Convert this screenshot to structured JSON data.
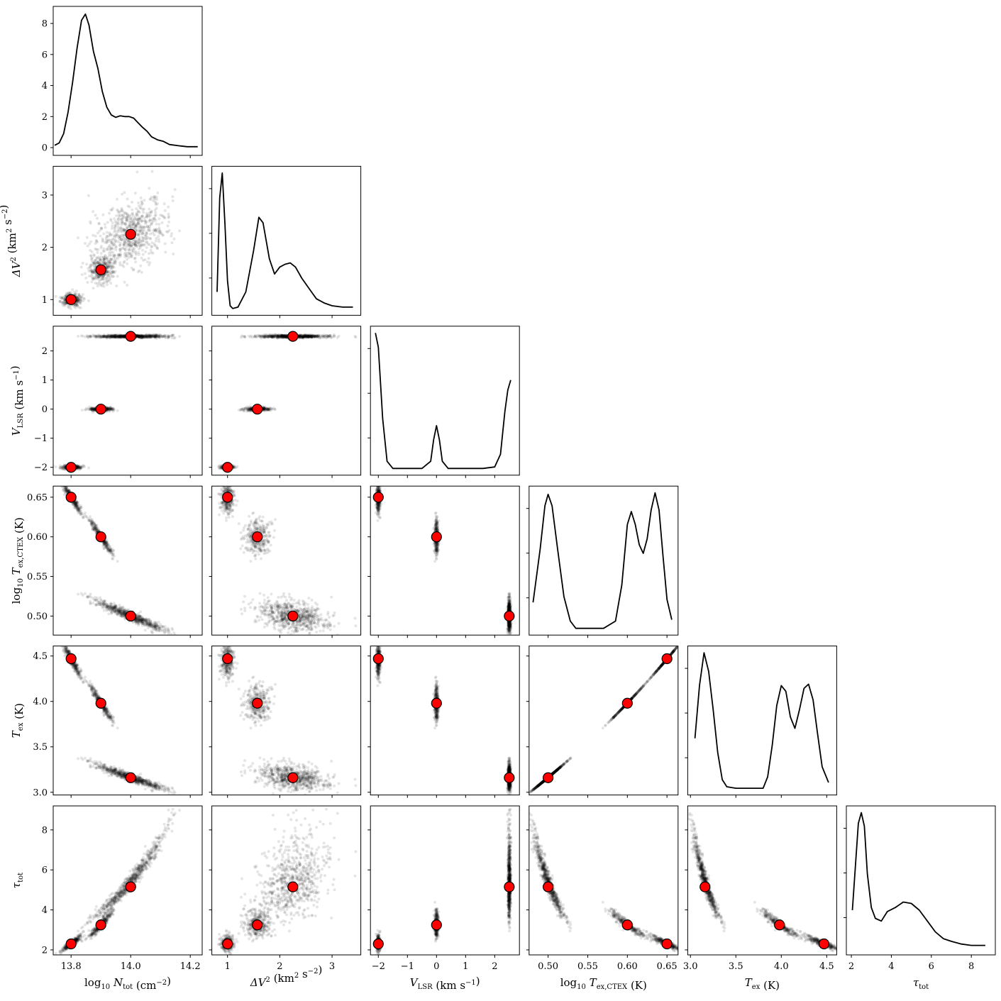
{
  "chart_data": {
    "type": "corner",
    "variables": [
      {
        "key": "logN",
        "label_base": "log",
        "label_sub": "10",
        "label_main": "N",
        "label_main_sub": "tot",
        "label_unit": "(cm",
        "label_unit_sup": "−2",
        "label_unit_end": ")",
        "ticks": [
          13.8,
          14.0,
          14.2
        ],
        "tick_labels": [
          "13.8",
          "14.0",
          "14.2"
        ],
        "range": [
          13.74,
          14.24
        ]
      },
      {
        "key": "dV2",
        "label_main": "ΔV",
        "label_main_sup": "2",
        "label_unit": "(km",
        "label_unit_sup": "2",
        "label_unit_mid": " s",
        "label_unit_sup2": "−2",
        "label_unit_end": ")",
        "ticks": [
          1,
          2,
          3
        ],
        "tick_labels": [
          "1",
          "2",
          "3"
        ],
        "range": [
          0.7,
          3.55
        ]
      },
      {
        "key": "vlsr",
        "label_main": "V",
        "label_main_sub": "LSR",
        "label_unit": "(km s",
        "label_unit_sup": "−1",
        "label_unit_end": ")",
        "ticks": [
          -2,
          -1,
          0,
          1,
          2
        ],
        "tick_labels": [
          "−2",
          "−1",
          "0",
          "1",
          "2"
        ],
        "range": [
          -2.27,
          2.85
        ]
      },
      {
        "key": "logTex",
        "label_base": "log",
        "label_sub": "10",
        "label_main": "T",
        "label_main_sub": "ex,CTEX",
        "label_unit": "(K)",
        "ticks": [
          0.5,
          0.55,
          0.6,
          0.65
        ],
        "tick_labels": [
          "0.50",
          "0.55",
          "0.60",
          "0.65"
        ],
        "range": [
          0.476,
          0.664
        ]
      },
      {
        "key": "Tex",
        "label_main": "T",
        "label_main_sub": "ex",
        "label_unit": "(K)",
        "ticks": [
          3.0,
          3.5,
          4.0,
          4.5
        ],
        "tick_labels": [
          "3.0",
          "3.5",
          "4.0",
          "4.5"
        ],
        "range": [
          2.97,
          4.61
        ]
      },
      {
        "key": "tau",
        "label_main": "τ",
        "label_main_sub": "tot",
        "label_unit": "",
        "ticks": [
          2,
          4,
          6,
          8
        ],
        "tick_labels": [
          "2",
          "4",
          "6",
          "8"
        ],
        "range": [
          1.75,
          9.2
        ]
      }
    ],
    "truths": [
      {
        "logN": 13.8,
        "dV2": 1.0,
        "vlsr": -2.0,
        "logTex": 0.65,
        "Tex": 4.47,
        "tau": 2.3
      },
      {
        "logN": 13.9,
        "dV2": 1.57,
        "vlsr": 0.0,
        "logTex": 0.6,
        "Tex": 3.98,
        "tau": 3.25
      },
      {
        "logN": 14.0,
        "dV2": 2.25,
        "vlsr": 2.5,
        "logTex": 0.5,
        "Tex": 3.16,
        "tau": 5.15
      }
    ],
    "diag_ticks": {
      "logN": {
        "ticks": [
          0,
          2,
          4,
          6,
          8
        ],
        "tick_labels": [
          "0",
          "2",
          "4",
          "6",
          "8"
        ],
        "range": [
          -0.5,
          9.1
        ]
      }
    },
    "marginal_curves": {
      "logN": [
        [
          13.745,
          0.15
        ],
        [
          13.76,
          0.3
        ],
        [
          13.775,
          0.9
        ],
        [
          13.79,
          2.3
        ],
        [
          13.805,
          4.2
        ],
        [
          13.82,
          6.4
        ],
        [
          13.835,
          8.2
        ],
        [
          13.848,
          8.6
        ],
        [
          13.86,
          7.9
        ],
        [
          13.875,
          6.2
        ],
        [
          13.89,
          5.1
        ],
        [
          13.905,
          3.6
        ],
        [
          13.92,
          2.6
        ],
        [
          13.935,
          2.1
        ],
        [
          13.95,
          1.95
        ],
        [
          13.965,
          2.05
        ],
        [
          13.98,
          2.0
        ],
        [
          13.995,
          2.0
        ],
        [
          14.01,
          1.9
        ],
        [
          14.025,
          1.6
        ],
        [
          14.04,
          1.3
        ],
        [
          14.055,
          1.05
        ],
        [
          14.07,
          0.7
        ],
        [
          14.09,
          0.5
        ],
        [
          14.11,
          0.4
        ],
        [
          14.13,
          0.2
        ],
        [
          14.16,
          0.12
        ],
        [
          14.19,
          0.06
        ],
        [
          14.225,
          0.06
        ]
      ],
      "dV2": [
        [
          0.8,
          0.12
        ],
        [
          0.85,
          0.8
        ],
        [
          0.9,
          0.98
        ],
        [
          0.95,
          0.62
        ],
        [
          1.0,
          0.2
        ],
        [
          1.05,
          0.02
        ],
        [
          1.1,
          0.0
        ],
        [
          1.2,
          0.01
        ],
        [
          1.35,
          0.12
        ],
        [
          1.5,
          0.42
        ],
        [
          1.6,
          0.66
        ],
        [
          1.68,
          0.62
        ],
        [
          1.8,
          0.36
        ],
        [
          1.9,
          0.25
        ],
        [
          2.0,
          0.3
        ],
        [
          2.1,
          0.32
        ],
        [
          2.2,
          0.33
        ],
        [
          2.3,
          0.3
        ],
        [
          2.42,
          0.22
        ],
        [
          2.55,
          0.15
        ],
        [
          2.7,
          0.07
        ],
        [
          2.85,
          0.04
        ],
        [
          3.0,
          0.02
        ],
        [
          3.2,
          0.01
        ],
        [
          3.4,
          0.01
        ]
      ],
      "vlsr": [
        [
          -2.1,
          0.95
        ],
        [
          -2.0,
          0.85
        ],
        [
          -1.85,
          0.35
        ],
        [
          -1.7,
          0.05
        ],
        [
          -1.5,
          0.0
        ],
        [
          -1.0,
          0.0
        ],
        [
          -0.5,
          0.0
        ],
        [
          -0.2,
          0.05
        ],
        [
          -0.1,
          0.2
        ],
        [
          0.0,
          0.3
        ],
        [
          0.1,
          0.2
        ],
        [
          0.2,
          0.05
        ],
        [
          0.4,
          0.0
        ],
        [
          1.0,
          0.0
        ],
        [
          1.6,
          0.0
        ],
        [
          2.0,
          0.01
        ],
        [
          2.2,
          0.1
        ],
        [
          2.35,
          0.4
        ],
        [
          2.45,
          0.55
        ],
        [
          2.55,
          0.62
        ]
      ],
      "logTex": [
        [
          0.481,
          0.18
        ],
        [
          0.49,
          0.55
        ],
        [
          0.496,
          0.85
        ],
        [
          0.5,
          0.93
        ],
        [
          0.505,
          0.85
        ],
        [
          0.512,
          0.55
        ],
        [
          0.52,
          0.22
        ],
        [
          0.528,
          0.05
        ],
        [
          0.535,
          0.0
        ],
        [
          0.57,
          0.0
        ],
        [
          0.585,
          0.05
        ],
        [
          0.593,
          0.3
        ],
        [
          0.6,
          0.72
        ],
        [
          0.605,
          0.81
        ],
        [
          0.61,
          0.72
        ],
        [
          0.615,
          0.58
        ],
        [
          0.62,
          0.52
        ],
        [
          0.625,
          0.62
        ],
        [
          0.63,
          0.82
        ],
        [
          0.635,
          0.94
        ],
        [
          0.64,
          0.82
        ],
        [
          0.645,
          0.5
        ],
        [
          0.65,
          0.2
        ],
        [
          0.656,
          0.06
        ]
      ],
      "Tex": [
        [
          3.05,
          0.35
        ],
        [
          3.1,
          0.72
        ],
        [
          3.15,
          0.95
        ],
        [
          3.2,
          0.82
        ],
        [
          3.25,
          0.55
        ],
        [
          3.3,
          0.25
        ],
        [
          3.35,
          0.06
        ],
        [
          3.4,
          0.01
        ],
        [
          3.5,
          0.0
        ],
        [
          3.8,
          0.0
        ],
        [
          3.85,
          0.08
        ],
        [
          3.9,
          0.3
        ],
        [
          3.95,
          0.58
        ],
        [
          4.0,
          0.72
        ],
        [
          4.05,
          0.68
        ],
        [
          4.1,
          0.5
        ],
        [
          4.15,
          0.42
        ],
        [
          4.2,
          0.55
        ],
        [
          4.25,
          0.7
        ],
        [
          4.3,
          0.73
        ],
        [
          4.35,
          0.62
        ],
        [
          4.4,
          0.38
        ],
        [
          4.45,
          0.15
        ],
        [
          4.52,
          0.04
        ]
      ],
      "tau": [
        [
          2.05,
          0.28
        ],
        [
          2.2,
          0.6
        ],
        [
          2.35,
          0.92
        ],
        [
          2.5,
          1.0
        ],
        [
          2.65,
          0.9
        ],
        [
          2.8,
          0.55
        ],
        [
          3.0,
          0.3
        ],
        [
          3.2,
          0.22
        ],
        [
          3.5,
          0.2
        ],
        [
          3.8,
          0.27
        ],
        [
          4.2,
          0.3
        ],
        [
          4.6,
          0.34
        ],
        [
          5.0,
          0.33
        ],
        [
          5.4,
          0.28
        ],
        [
          5.8,
          0.2
        ],
        [
          6.2,
          0.12
        ],
        [
          6.6,
          0.07
        ],
        [
          7.0,
          0.05
        ],
        [
          7.5,
          0.03
        ],
        [
          8.0,
          0.02
        ],
        [
          8.7,
          0.02
        ]
      ]
    }
  }
}
